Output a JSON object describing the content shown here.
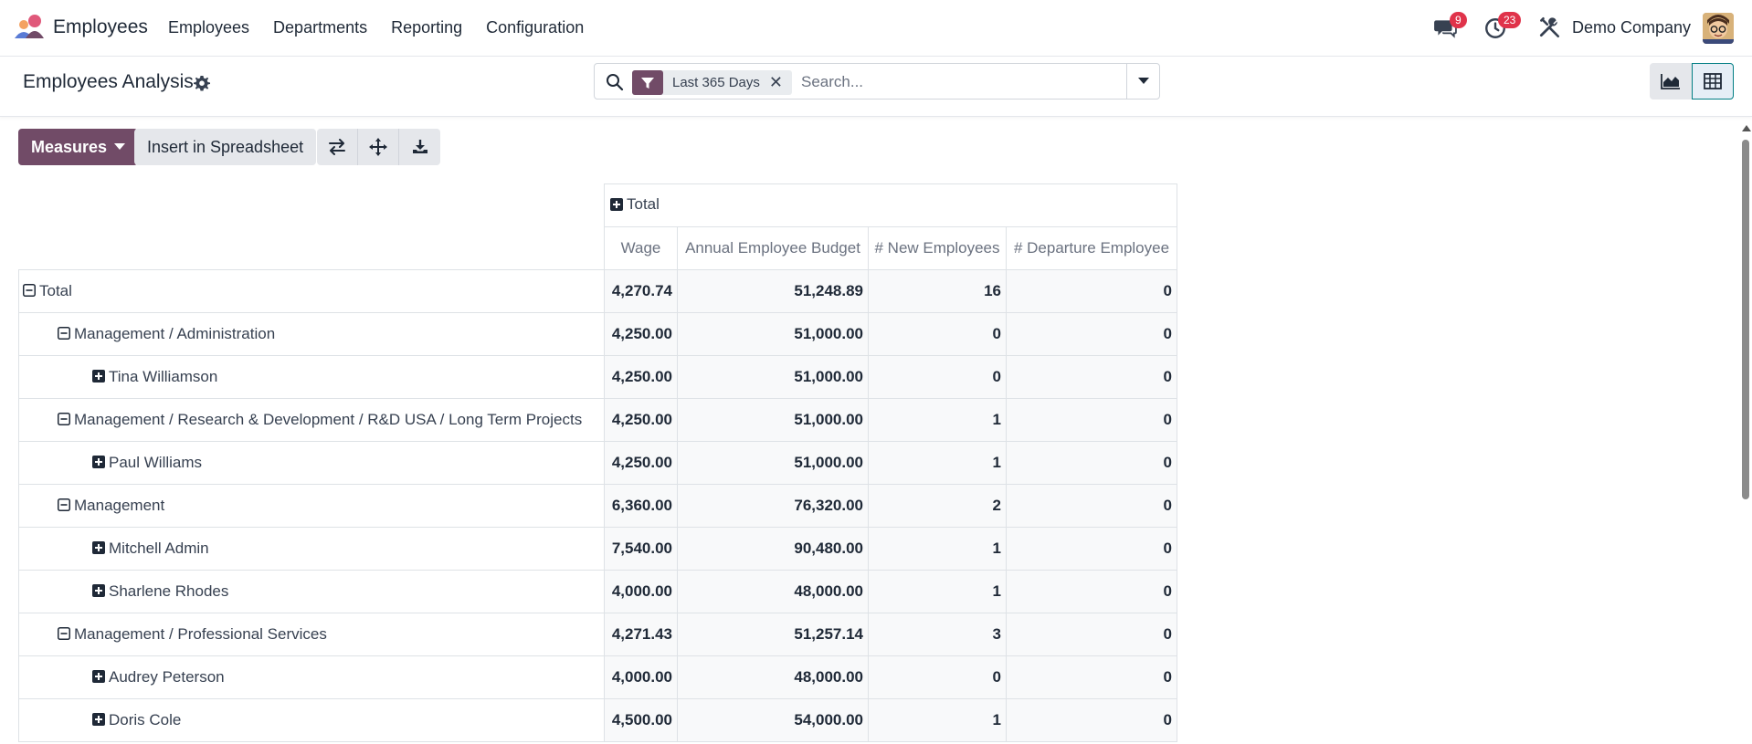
{
  "navbar": {
    "app_name": "Employees",
    "menu": [
      "Employees",
      "Departments",
      "Reporting",
      "Configuration"
    ],
    "messages_count": "9",
    "activities_count": "23",
    "company": "Demo Company"
  },
  "control": {
    "title": "Employees Analysis",
    "facet_label": "Last 365 Days",
    "search_placeholder": "Search..."
  },
  "toolbar": {
    "measures_label": "Measures",
    "insert_label": "Insert in Spreadsheet"
  },
  "pivot": {
    "col_header": "Total",
    "measures": [
      "Wage",
      "Annual Employee Budget",
      "# New Employees",
      "# Departure Employee"
    ],
    "rows": [
      {
        "label": "Total",
        "level": 0,
        "type": "collapse",
        "values": [
          "4,270.74",
          "51,248.89",
          "16",
          "0"
        ]
      },
      {
        "label": "Management / Administration",
        "level": 1,
        "type": "collapse",
        "values": [
          "4,250.00",
          "51,000.00",
          "0",
          "0"
        ]
      },
      {
        "label": "Tina Williamson",
        "level": 2,
        "type": "expand",
        "values": [
          "4,250.00",
          "51,000.00",
          "0",
          "0"
        ]
      },
      {
        "label": "Management / Research & Development / R&D USA / Long Term Projects",
        "level": 1,
        "type": "collapse",
        "values": [
          "4,250.00",
          "51,000.00",
          "1",
          "0"
        ]
      },
      {
        "label": "Paul Williams",
        "level": 2,
        "type": "expand",
        "values": [
          "4,250.00",
          "51,000.00",
          "1",
          "0"
        ]
      },
      {
        "label": "Management",
        "level": 1,
        "type": "collapse",
        "values": [
          "6,360.00",
          "76,320.00",
          "2",
          "0"
        ]
      },
      {
        "label": "Mitchell Admin",
        "level": 2,
        "type": "expand",
        "values": [
          "7,540.00",
          "90,480.00",
          "1",
          "0"
        ]
      },
      {
        "label": "Sharlene Rhodes",
        "level": 2,
        "type": "expand",
        "values": [
          "4,000.00",
          "48,000.00",
          "1",
          "0"
        ]
      },
      {
        "label": "Management / Professional Services",
        "level": 1,
        "type": "collapse",
        "values": [
          "4,271.43",
          "51,257.14",
          "3",
          "0"
        ]
      },
      {
        "label": "Audrey Peterson",
        "level": 2,
        "type": "expand",
        "values": [
          "4,000.00",
          "48,000.00",
          "0",
          "0"
        ]
      },
      {
        "label": "Doris Cole",
        "level": 2,
        "type": "expand",
        "values": [
          "4,500.00",
          "54,000.00",
          "1",
          "0"
        ]
      }
    ]
  },
  "colors": {
    "brand": "#714b67",
    "badge": "#e0334a",
    "active_view": "#017e84"
  },
  "icons": {
    "app": "employees-logo-icon",
    "messages": "chat-icon",
    "activities": "clock-icon",
    "tools": "tools-icon",
    "settings": "gear-icon",
    "search": "search-icon",
    "filter": "filter-icon",
    "graph_view": "area-chart-icon",
    "pivot_view": "table-icon",
    "flip": "flip-axis-icon",
    "expand_all": "expand-all-icon",
    "download": "download-icon"
  }
}
